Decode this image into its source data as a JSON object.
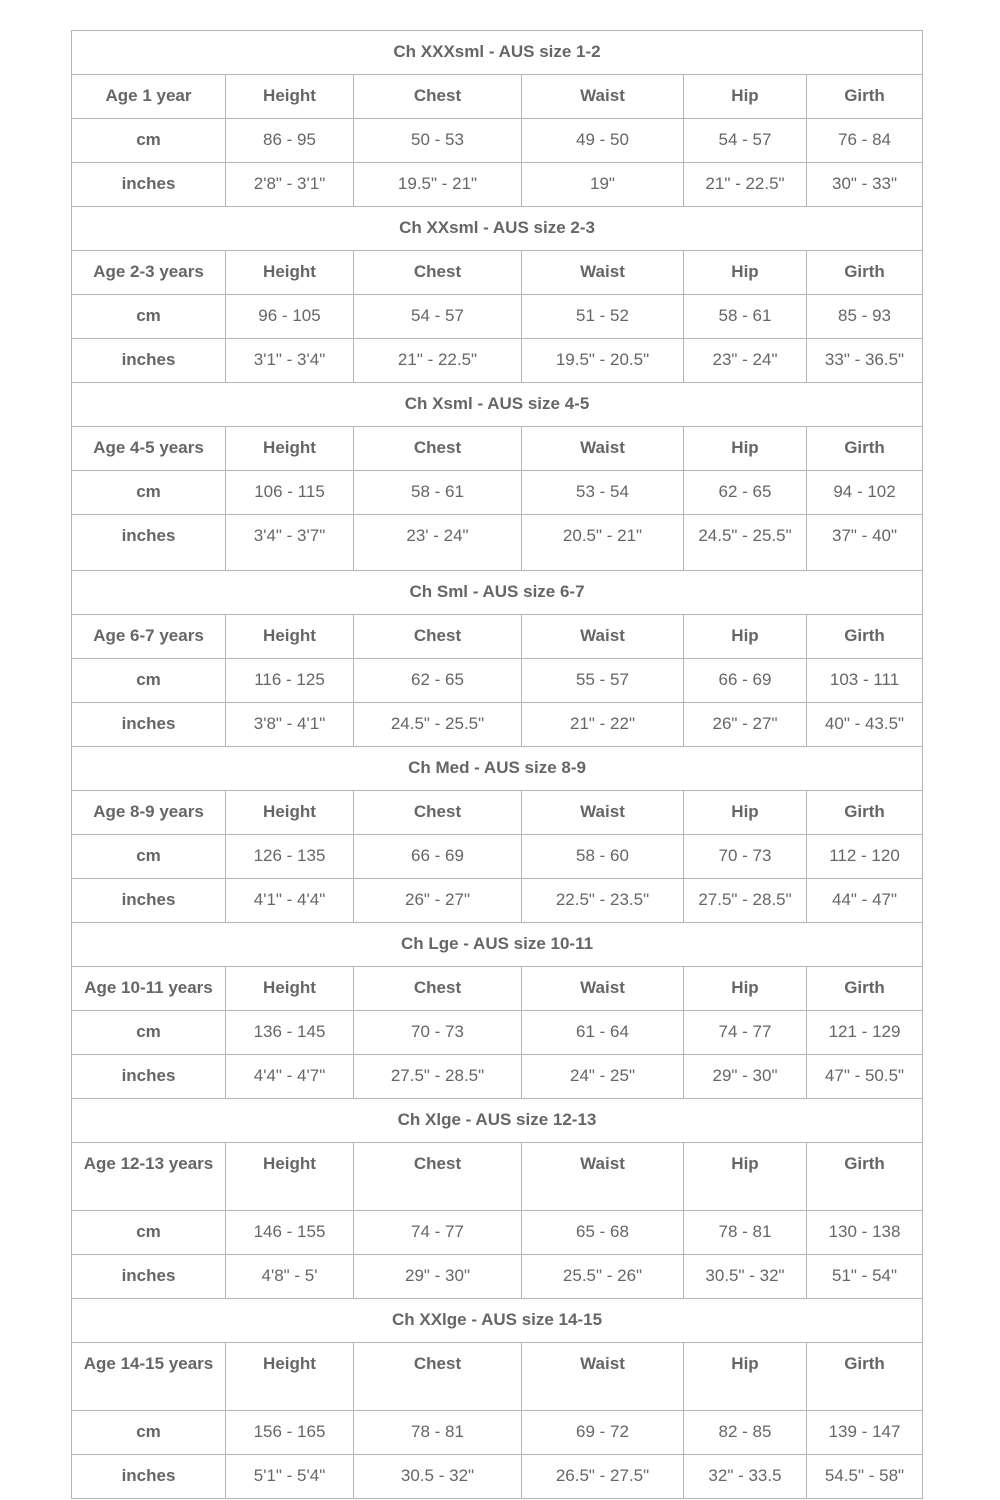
{
  "sections": [
    {
      "title": "Ch XXXsml - AUS size 1-2",
      "rows": [
        [
          "Age 1 year",
          "Height",
          "Chest",
          "Waist",
          "Hip",
          "Girth"
        ],
        [
          "cm",
          "86 - 95",
          "50 - 53",
          "49 - 50",
          "54 - 57",
          "76 - 84"
        ],
        [
          "inches",
          "2'8\" - 3'1\"",
          "19.5\" - 21\"",
          "19\"",
          "21\" - 22.5\"",
          "30\" - 33\""
        ]
      ]
    },
    {
      "title": "Ch XXsml - AUS size 2-3",
      "rows": [
        [
          "Age 2-3 years",
          "Height",
          "Chest",
          "Waist",
          "Hip",
          "Girth"
        ],
        [
          "cm",
          "96 - 105",
          "54 - 57",
          "51 - 52",
          "58 - 61",
          "85 - 93"
        ],
        [
          "inches",
          "3'1\" - 3'4\"",
          "21\" - 22.5\"",
          "19.5\" - 20.5\"",
          "23\" - 24\"",
          "33\" - 36.5\""
        ]
      ]
    },
    {
      "title": "Ch Xsml - AUS size 4-5",
      "rows": [
        [
          "Age 4-5 years",
          "Height",
          "Chest",
          "Waist",
          "Hip",
          "Girth"
        ],
        [
          "cm",
          "106 - 115",
          "58 - 61",
          "53 - 54",
          "62 - 65",
          "94 - 102"
        ],
        [
          "inches",
          "3'4\" - 3'7\"",
          "23' - 24\"",
          "20.5\" - 21\"",
          "24.5\" - 25.5\"",
          "37\" - 40\""
        ]
      ]
    },
    {
      "title": "Ch Sml - AUS size 6-7",
      "rows": [
        [
          "Age 6-7 years",
          "Height",
          "Chest",
          "Waist",
          "Hip",
          "Girth"
        ],
        [
          "cm",
          "116 - 125",
          "62 - 65",
          "55 - 57",
          "66 - 69",
          "103 - 111"
        ],
        [
          "inches",
          "3'8\" - 4'1\"",
          "24.5\" - 25.5\"",
          "21\" - 22\"",
          "26\" - 27\"",
          "40\" - 43.5\""
        ]
      ]
    },
    {
      "title": "Ch Med - AUS size 8-9",
      "rows": [
        [
          "Age 8-9 years",
          "Height",
          "Chest",
          "Waist",
          "Hip",
          "Girth"
        ],
        [
          "cm",
          "126 - 135",
          "66 - 69",
          "58 - 60",
          "70 - 73",
          "112 - 120"
        ],
        [
          "inches",
          "4'1\" - 4'4\"",
          "26\" - 27\"",
          "22.5\" - 23.5\"",
          "27.5\" - 28.5\"",
          "44\" - 47\""
        ]
      ]
    },
    {
      "title": "Ch Lge - AUS size 10-11",
      "rows": [
        [
          "Age 10-11 years",
          "Height",
          "Chest",
          "Waist",
          "Hip",
          "Girth"
        ],
        [
          "cm",
          "136 - 145",
          "70 - 73",
          "61 - 64",
          "74 - 77",
          "121 - 129"
        ],
        [
          "inches",
          "4'4\" - 4'7\"",
          "27.5\" - 28.5\"",
          "24\" - 25\"",
          "29\" - 30\"",
          "47\" - 50.5\""
        ]
      ]
    },
    {
      "title": "Ch Xlge - AUS size 12-13",
      "rows": [
        [
          "Age 12-13 years",
          "Height",
          "Chest",
          "Waist",
          "Hip",
          "Girth"
        ],
        [
          "cm",
          "146 - 155",
          "74 - 77",
          "65 - 68",
          "78 - 81",
          "130 - 138"
        ],
        [
          "inches",
          "4'8\" - 5'",
          "29\" - 30\"",
          "25.5\" - 26\"",
          "30.5\" - 32\"",
          "51\" - 54\""
        ]
      ]
    },
    {
      "title": "Ch XXlge - AUS size 14-15",
      "rows": [
        [
          "Age 14-15 years",
          "Height",
          "Chest",
          "Waist",
          "Hip",
          "Girth"
        ],
        [
          "cm",
          "156 - 165",
          "78 - 81",
          "69 - 72",
          "82 - 85",
          "139 - 147"
        ],
        [
          "inches",
          "5'1\" - 5'4\"",
          "30.5 - 32\"",
          "26.5\" - 27.5\"",
          "32\" - 33.5",
          "54.5\" - 58\""
        ]
      ]
    }
  ]
}
